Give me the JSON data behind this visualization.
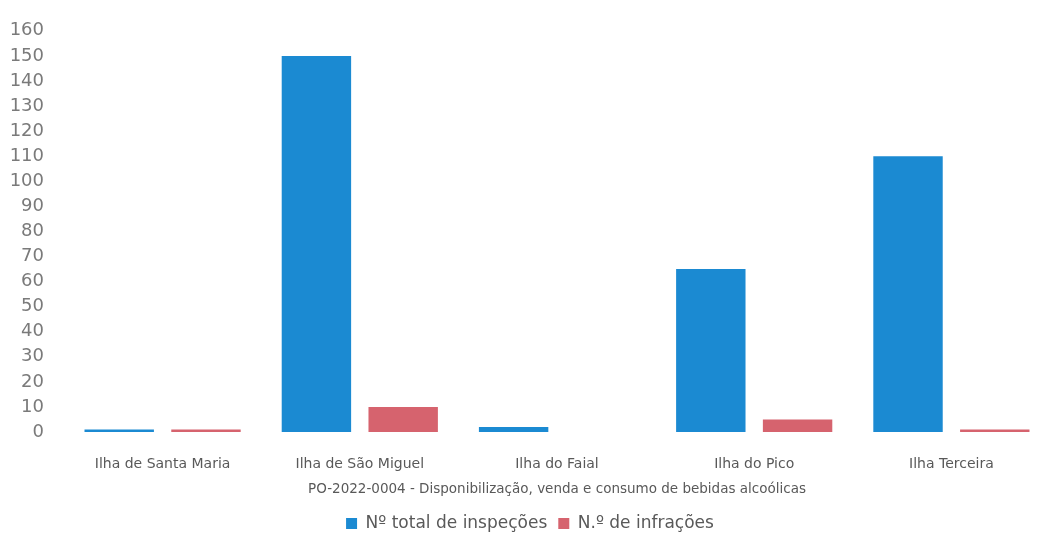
{
  "chart_data": {
    "type": "bar",
    "categories": [
      "Ilha de Santa Maria",
      "Ilha de São Miguel",
      "Ilha do Faial",
      "Ilha do Pico",
      "Ilha Terceira"
    ],
    "series": [
      {
        "name": "Nº total de inspeções",
        "color": "#1b8ad2",
        "values": [
          1,
          150,
          2,
          65,
          110
        ]
      },
      {
        "name": "N.º de infrações",
        "color": "#d6636e",
        "values": [
          1,
          10,
          0,
          5,
          1
        ]
      }
    ],
    "xlabel": "PO-2022-0004 - Disponibilização, venda e consumo de bebidas alcoólicas",
    "ylim": [
      0,
      160
    ],
    "yticks": [
      0,
      10,
      20,
      30,
      40,
      50,
      60,
      70,
      80,
      90,
      100,
      110,
      120,
      130,
      140,
      150,
      160
    ],
    "grid": false,
    "legend": "bottom"
  }
}
